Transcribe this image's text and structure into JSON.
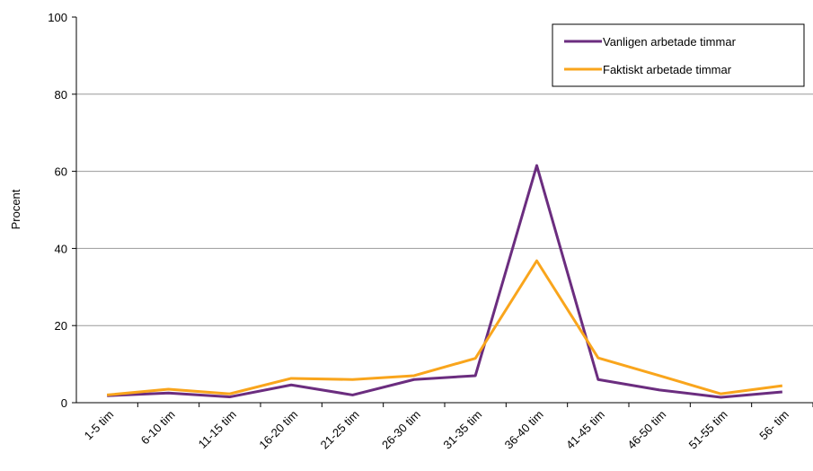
{
  "chart_data": {
    "type": "line",
    "categories": [
      "1-5 tim",
      "6-10 tim",
      "11-15 tim",
      "16-20 tim",
      "21-25 tim",
      "26-30 tim",
      "31-35 tim",
      "36-40 tim",
      "41-45 tim",
      "46-50 tim",
      "51-55 tim",
      "56- tim"
    ],
    "series": [
      {
        "name": "Vanligen arbetade timmar",
        "color": "#6b2d7f",
        "values": [
          1.8,
          2.5,
          1.5,
          4.6,
          2,
          6,
          7,
          61.5,
          6,
          3.3,
          1.4,
          2.8
        ]
      },
      {
        "name": "Faktiskt arbetade timmar",
        "color": "#f9a51c",
        "values": [
          2,
          3.5,
          2.3,
          6.3,
          6,
          7,
          11.5,
          36.8,
          11.6,
          7,
          2.3,
          4.4
        ]
      }
    ],
    "y_label": "Procent",
    "ylim": [
      0,
      100
    ],
    "yticks": [
      0,
      20,
      40,
      60,
      80,
      100
    ],
    "grid": true,
    "legend": "upper right"
  }
}
